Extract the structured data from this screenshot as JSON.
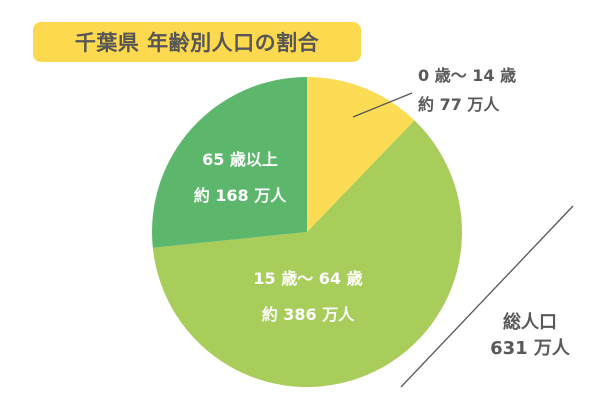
{
  "title": "千葉県 年齢別人口の割合",
  "colors": {
    "title_bg": "#fcd94f",
    "age_0_14": "#fddc55",
    "age_15_64": "#a8cd5a",
    "age_65_plus": "#5cb76c",
    "text_gray": "#595959"
  },
  "labels": {
    "age_0_14": {
      "range": "0 歳～ 14 歳",
      "value": "約 77 万人"
    },
    "age_15_64": {
      "range": "15 歳～ 64 歳",
      "value": "約 386 万人"
    },
    "age_65_plus": {
      "range": "65 歳以上",
      "value": "約 168 万人"
    }
  },
  "total": {
    "label": "総人口",
    "value": "631 万人"
  },
  "chart_data": {
    "type": "pie",
    "title": "千葉県 年齢別人口の割合",
    "unit": "万人",
    "categories": [
      "0歳～14歳",
      "15歳～64歳",
      "65歳以上"
    ],
    "values": [
      77,
      386,
      168
    ],
    "total": 631,
    "start_angle": "12 o'clock, clockwise",
    "legend": "inline labels"
  }
}
